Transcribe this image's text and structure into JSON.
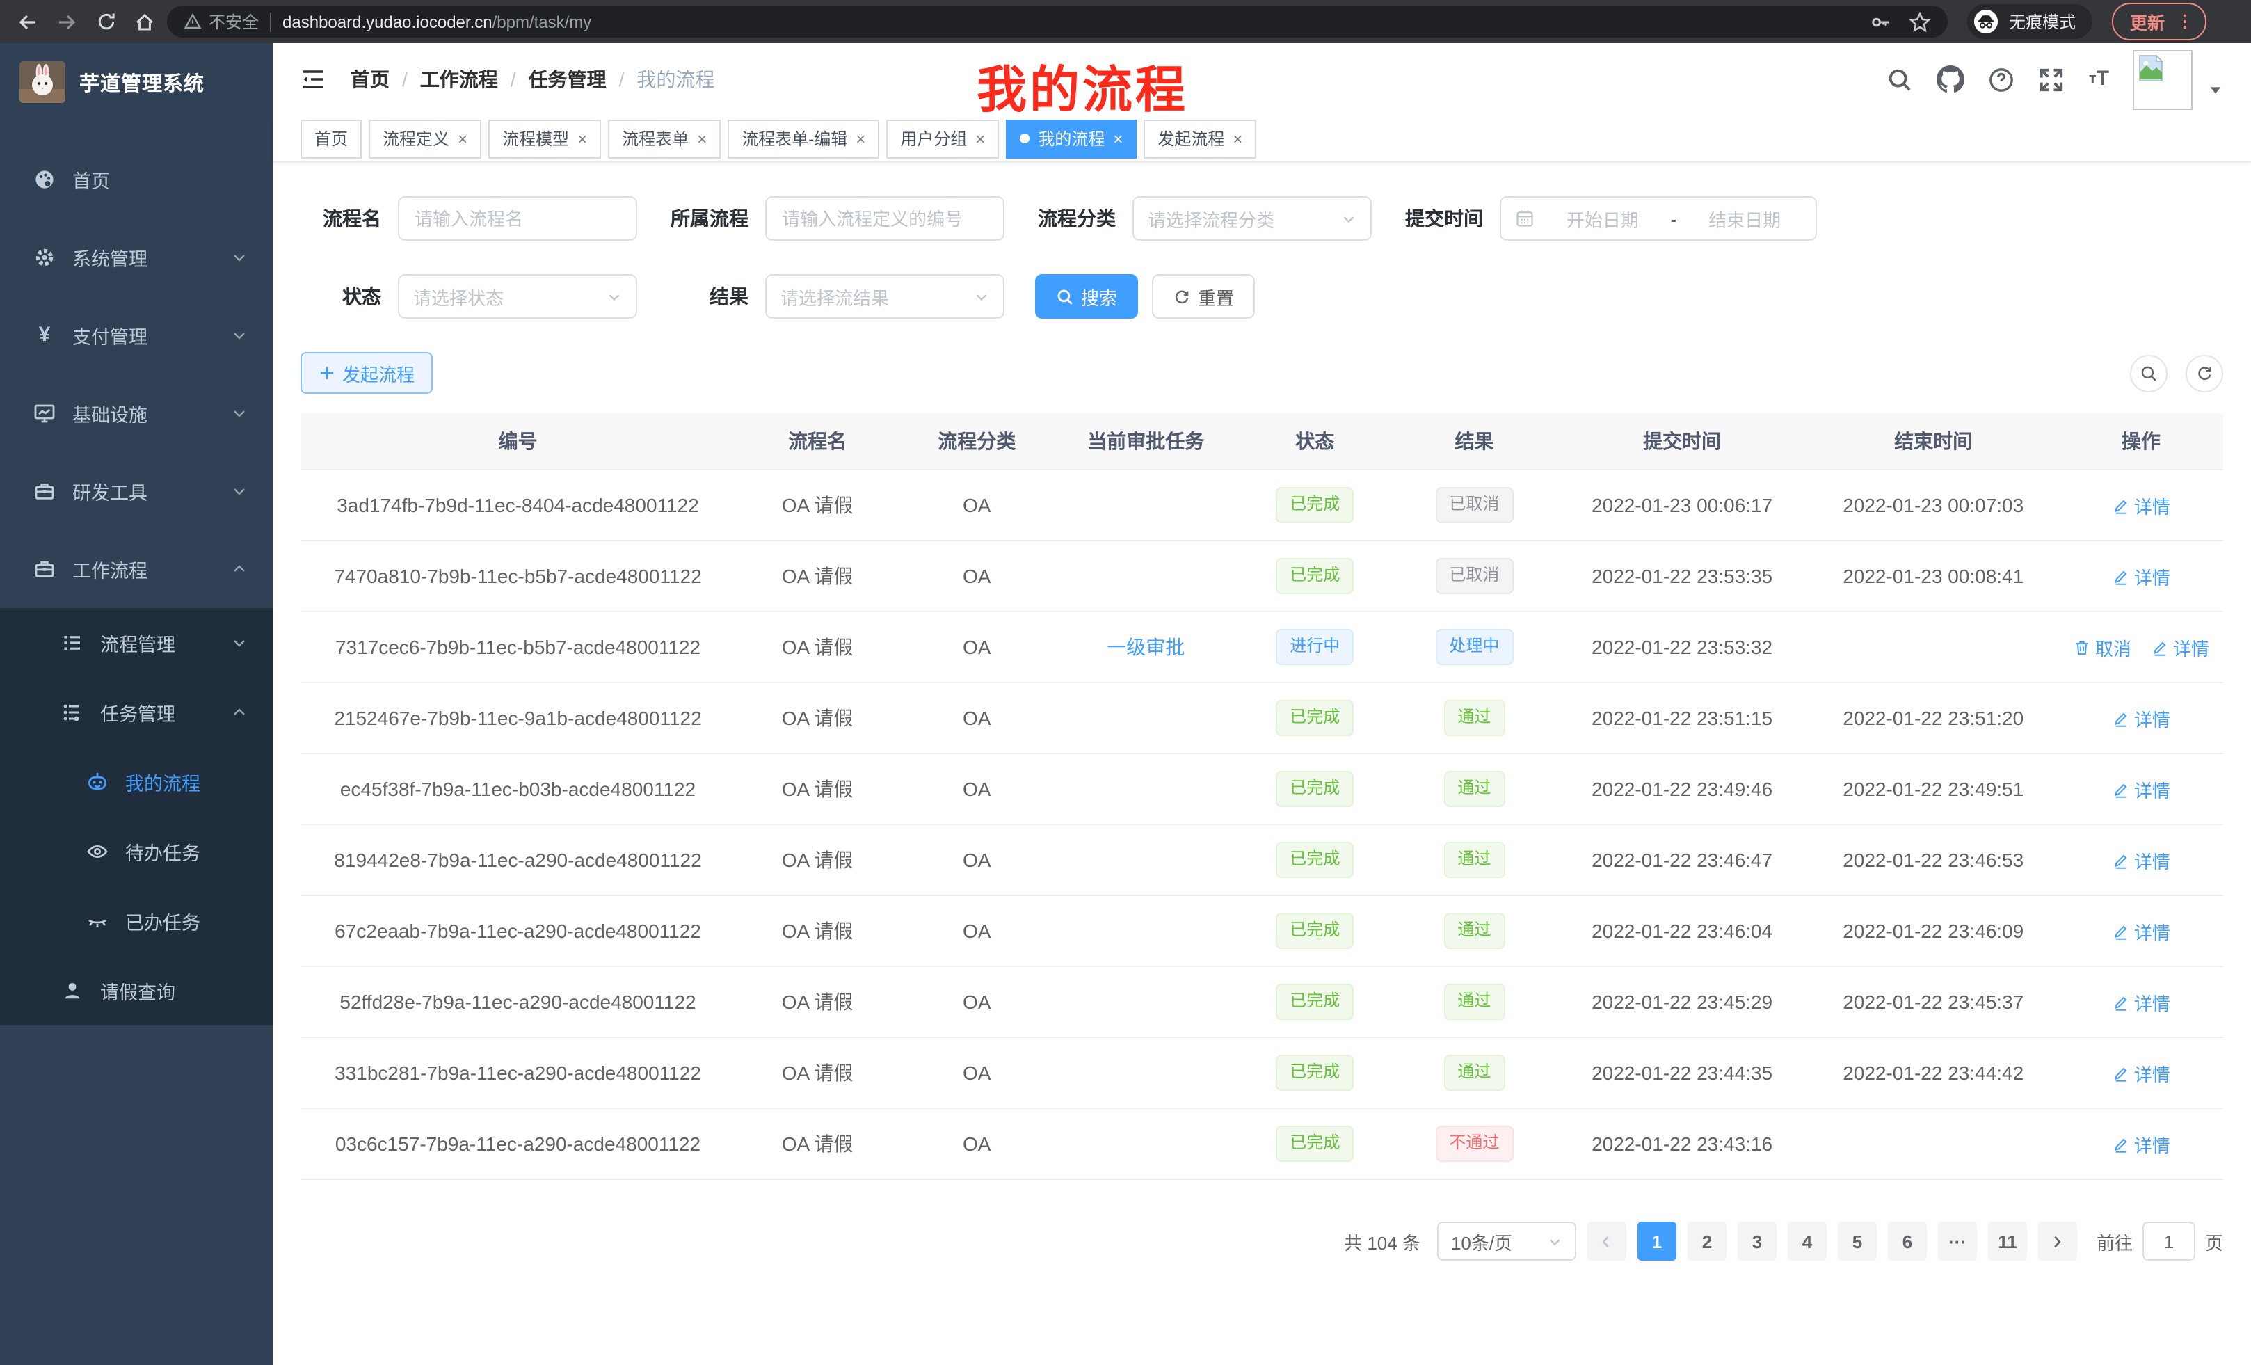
{
  "browser": {
    "insecure_label": "不安全",
    "url_host": "dashboard.yudao.iocoder.cn",
    "url_path": "/bpm/task/my",
    "incognito_label": "无痕模式",
    "update_label": "更新"
  },
  "sidebar": {
    "title": "芋道管理系统",
    "menu": [
      {
        "label": "首页",
        "icon": "dashboard-icon",
        "level": 1,
        "sub": false,
        "arrow": "",
        "active": false
      },
      {
        "label": "系统管理",
        "icon": "gear-icon",
        "level": 1,
        "sub": false,
        "arrow": "down",
        "active": false
      },
      {
        "label": "支付管理",
        "icon": "yen-icon",
        "level": 1,
        "sub": false,
        "arrow": "down",
        "active": false
      },
      {
        "label": "基础设施",
        "icon": "monitor-icon",
        "level": 1,
        "sub": false,
        "arrow": "down",
        "active": false
      },
      {
        "label": "研发工具",
        "icon": "toolbox-icon",
        "level": 1,
        "sub": false,
        "arrow": "down",
        "active": false
      },
      {
        "label": "工作流程",
        "icon": "briefcase-icon",
        "level": 1,
        "sub": false,
        "arrow": "up",
        "active": false
      },
      {
        "label": "流程管理",
        "icon": "tree-icon",
        "level": 2,
        "sub": true,
        "arrow": "down",
        "active": false
      },
      {
        "label": "任务管理",
        "icon": "flow-icon",
        "level": 2,
        "sub": true,
        "arrow": "up",
        "active": false
      },
      {
        "label": "我的流程",
        "icon": "robot-icon",
        "level": 3,
        "sub": true,
        "arrow": "",
        "active": true
      },
      {
        "label": "待办任务",
        "icon": "eye-icon",
        "level": 3,
        "sub": true,
        "arrow": "",
        "active": false
      },
      {
        "label": "已办任务",
        "icon": "eye-closed-icon",
        "level": 3,
        "sub": true,
        "arrow": "",
        "active": false
      },
      {
        "label": "请假查询",
        "icon": "user-icon",
        "level": 2,
        "sub": true,
        "arrow": "",
        "active": false
      }
    ]
  },
  "header": {
    "breadcrumb": [
      "首页",
      "工作流程",
      "任务管理",
      "我的流程"
    ],
    "annotation": "我的流程"
  },
  "tabs": [
    {
      "label": "首页",
      "closable": false,
      "active": false
    },
    {
      "label": "流程定义",
      "closable": true,
      "active": false
    },
    {
      "label": "流程模型",
      "closable": true,
      "active": false
    },
    {
      "label": "流程表单",
      "closable": true,
      "active": false
    },
    {
      "label": "流程表单-编辑",
      "closable": true,
      "active": false
    },
    {
      "label": "用户分组",
      "closable": true,
      "active": false
    },
    {
      "label": "我的流程",
      "closable": true,
      "active": true
    },
    {
      "label": "发起流程",
      "closable": true,
      "active": false
    }
  ],
  "filters": {
    "name_label": "流程名",
    "name_placeholder": "请输入流程名",
    "process_label": "所属流程",
    "process_placeholder": "请输入流程定义的编号",
    "category_label": "流程分类",
    "category_placeholder": "请选择流程分类",
    "time_label": "提交时间",
    "date_start": "开始日期",
    "date_sep": "-",
    "date_end": "结束日期",
    "status_label": "状态",
    "status_placeholder": "请选择状态",
    "result_label": "结果",
    "result_placeholder": "请选择流结果",
    "search_label": "搜索",
    "reset_label": "重置"
  },
  "toolbar": {
    "create_label": "发起流程"
  },
  "table": {
    "columns": [
      "编号",
      "流程名",
      "流程分类",
      "当前审批任务",
      "状态",
      "结果",
      "提交时间",
      "结束时间",
      "操作"
    ],
    "rows": [
      {
        "id": "3ad174fb-7b9d-11ec-8404-acde48001122",
        "name": "OA 请假",
        "category": "OA",
        "task": "",
        "status": {
          "text": "已完成",
          "type": "success"
        },
        "result": {
          "text": "已取消",
          "type": "info"
        },
        "submit": "2022-01-23 00:06:17",
        "end": "2022-01-23 00:07:03",
        "actions": [
          {
            "label": "详情",
            "icon": "edit-icon"
          }
        ]
      },
      {
        "id": "7470a810-7b9b-11ec-b5b7-acde48001122",
        "name": "OA 请假",
        "category": "OA",
        "task": "",
        "status": {
          "text": "已完成",
          "type": "success"
        },
        "result": {
          "text": "已取消",
          "type": "info"
        },
        "submit": "2022-01-22 23:53:35",
        "end": "2022-01-23 00:08:41",
        "actions": [
          {
            "label": "详情",
            "icon": "edit-icon"
          }
        ]
      },
      {
        "id": "7317cec6-7b9b-11ec-b5b7-acde48001122",
        "name": "OA 请假",
        "category": "OA",
        "task": "一级审批",
        "status": {
          "text": "进行中",
          "type": "primary"
        },
        "result": {
          "text": "处理中",
          "type": "primary"
        },
        "submit": "2022-01-22 23:53:32",
        "end": "",
        "actions": [
          {
            "label": "取消",
            "icon": "trash-icon"
          },
          {
            "label": "详情",
            "icon": "edit-icon"
          }
        ]
      },
      {
        "id": "2152467e-7b9b-11ec-9a1b-acde48001122",
        "name": "OA 请假",
        "category": "OA",
        "task": "",
        "status": {
          "text": "已完成",
          "type": "success"
        },
        "result": {
          "text": "通过",
          "type": "success"
        },
        "submit": "2022-01-22 23:51:15",
        "end": "2022-01-22 23:51:20",
        "actions": [
          {
            "label": "详情",
            "icon": "edit-icon"
          }
        ]
      },
      {
        "id": "ec45f38f-7b9a-11ec-b03b-acde48001122",
        "name": "OA 请假",
        "category": "OA",
        "task": "",
        "status": {
          "text": "已完成",
          "type": "success"
        },
        "result": {
          "text": "通过",
          "type": "success"
        },
        "submit": "2022-01-22 23:49:46",
        "end": "2022-01-22 23:49:51",
        "actions": [
          {
            "label": "详情",
            "icon": "edit-icon"
          }
        ]
      },
      {
        "id": "819442e8-7b9a-11ec-a290-acde48001122",
        "name": "OA 请假",
        "category": "OA",
        "task": "",
        "status": {
          "text": "已完成",
          "type": "success"
        },
        "result": {
          "text": "通过",
          "type": "success"
        },
        "submit": "2022-01-22 23:46:47",
        "end": "2022-01-22 23:46:53",
        "actions": [
          {
            "label": "详情",
            "icon": "edit-icon"
          }
        ]
      },
      {
        "id": "67c2eaab-7b9a-11ec-a290-acde48001122",
        "name": "OA 请假",
        "category": "OA",
        "task": "",
        "status": {
          "text": "已完成",
          "type": "success"
        },
        "result": {
          "text": "通过",
          "type": "success"
        },
        "submit": "2022-01-22 23:46:04",
        "end": "2022-01-22 23:46:09",
        "actions": [
          {
            "label": "详情",
            "icon": "edit-icon"
          }
        ]
      },
      {
        "id": "52ffd28e-7b9a-11ec-a290-acde48001122",
        "name": "OA 请假",
        "category": "OA",
        "task": "",
        "status": {
          "text": "已完成",
          "type": "success"
        },
        "result": {
          "text": "通过",
          "type": "success"
        },
        "submit": "2022-01-22 23:45:29",
        "end": "2022-01-22 23:45:37",
        "actions": [
          {
            "label": "详情",
            "icon": "edit-icon"
          }
        ]
      },
      {
        "id": "331bc281-7b9a-11ec-a290-acde48001122",
        "name": "OA 请假",
        "category": "OA",
        "task": "",
        "status": {
          "text": "已完成",
          "type": "success"
        },
        "result": {
          "text": "通过",
          "type": "success"
        },
        "submit": "2022-01-22 23:44:35",
        "end": "2022-01-22 23:44:42",
        "actions": [
          {
            "label": "详情",
            "icon": "edit-icon"
          }
        ]
      },
      {
        "id": "03c6c157-7b9a-11ec-a290-acde48001122",
        "name": "OA 请假",
        "category": "OA",
        "task": "",
        "status": {
          "text": "已完成",
          "type": "success"
        },
        "result": {
          "text": "不通过",
          "type": "danger"
        },
        "submit": "2022-01-22 23:43:16",
        "end": "",
        "actions": [
          {
            "label": "详情",
            "icon": "edit-icon"
          }
        ]
      }
    ]
  },
  "pagination": {
    "total_text": "共 104 条",
    "page_size": "10条/页",
    "pages": [
      "1",
      "2",
      "3",
      "4",
      "5",
      "6",
      "···",
      "11"
    ],
    "active_page": "1",
    "goto_prefix": "前往",
    "goto_value": "1",
    "goto_suffix": "页"
  },
  "colors": {
    "accent": "#409eff",
    "success": "#67c23a",
    "danger": "#f56c6c",
    "info": "#909399",
    "sidebar_bg": "#304156",
    "submenu_bg": "#1f2d3d",
    "annotation_red": "#fb2a1a"
  }
}
